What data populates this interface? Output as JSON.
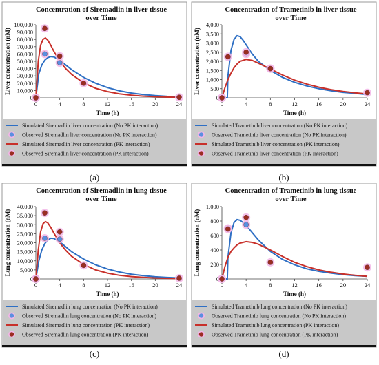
{
  "colors": {
    "simulated_no_pk": "#2e6fc4",
    "observed_no_pk_fill": "#5b8fe0",
    "simulated_pk": "#c8302a",
    "observed_pk_fill": "#9b2d22",
    "marker_halo": "#f2b6e6",
    "legend_bg": "#c8c8c8",
    "frame": "#9a9a9a"
  },
  "panel_labels": [
    "(a)",
    "(b)",
    "(c)",
    "(d)"
  ],
  "chart_data": [
    {
      "type": "line",
      "title": [
        "Concentration of Siremadlin in liver tissue",
        "over Time"
      ],
      "xlabel": "Time (h)",
      "ylabel": "Liver concentration (nM)",
      "xlim": [
        0,
        24
      ],
      "ylim": [
        0,
        100000
      ],
      "xticks": [
        0,
        4,
        8,
        12,
        16,
        20,
        24
      ],
      "yticks": [
        0,
        10000,
        20000,
        30000,
        40000,
        50000,
        60000,
        70000,
        80000,
        90000,
        100000
      ],
      "ytick_labels": [
        "0",
        "10,000",
        "20,000",
        "30,000",
        "40,000",
        "50,000",
        "60,000",
        "70,000",
        "80,000",
        "90,000",
        "100,000"
      ],
      "grid": false,
      "series": [
        {
          "name": "Simulated Siremadlin liver concentration (No PK interaction)",
          "kind": "line",
          "color": "#2e6fc4",
          "x": [
            0,
            0.5,
            1,
            1.5,
            2,
            2.5,
            3,
            3.5,
            4,
            5,
            6,
            8,
            10,
            12,
            14,
            16,
            18,
            20,
            22,
            24
          ],
          "y": [
            0,
            33000,
            45000,
            51500,
            55000,
            56500,
            56000,
            54000,
            51500,
            45000,
            38500,
            28000,
            20000,
            14000,
            9500,
            6500,
            4500,
            3000,
            2000,
            1300
          ]
        },
        {
          "name": "Observed Siremadlin liver concentration (No PK interaction)",
          "kind": "marker",
          "color": "#5b8fe0",
          "x": [
            0,
            1.5,
            4
          ],
          "y": [
            0,
            60000,
            48000
          ]
        },
        {
          "name": "Simulated Siremadlin liver concentration (PK interaction)",
          "kind": "line",
          "color": "#c8302a",
          "x": [
            0,
            0.4,
            0.8,
            1.2,
            1.6,
            2,
            2.5,
            3,
            4,
            5,
            6,
            8,
            10,
            12,
            14,
            16,
            18,
            20,
            22,
            24
          ],
          "y": [
            0,
            50000,
            72000,
            80000,
            82000,
            79000,
            72000,
            64000,
            50000,
            40000,
            32000,
            20500,
            13000,
            8500,
            5500,
            3500,
            2300,
            1500,
            1000,
            600
          ]
        },
        {
          "name": "Observed Siremadlin liver concentration (PK interaction)",
          "kind": "marker",
          "color": "#9b2d22",
          "x": [
            0,
            1.5,
            4,
            8,
            24
          ],
          "y": [
            0,
            95000,
            57000,
            20000,
            700
          ]
        }
      ]
    },
    {
      "type": "line",
      "title": [
        "Concentration of Trametinib in liver tissue",
        "over Time"
      ],
      "xlabel": "Time (h)",
      "ylabel": "Liver concentration (nM)",
      "xlim": [
        0,
        24
      ],
      "ylim": [
        0,
        4000
      ],
      "xticks": [
        0,
        4,
        8,
        12,
        16,
        20,
        24
      ],
      "yticks": [
        0,
        500,
        1000,
        1500,
        2000,
        2500,
        3000,
        3500,
        4000
      ],
      "ytick_labels": [
        "0",
        "500",
        "1,000",
        "1,500",
        "2,000",
        "2,500",
        "3,000",
        "3,500",
        "4,000"
      ],
      "grid": false,
      "series": [
        {
          "name": "Simulated Trametinib liver concentration (No PK interaction)",
          "kind": "line",
          "color": "#2e6fc4",
          "x": [
            0,
            0.9,
            1,
            1.5,
            2,
            2.5,
            3,
            3.5,
            4,
            5,
            6,
            8,
            10,
            12,
            14,
            16,
            18,
            20,
            22,
            24
          ],
          "y": [
            0,
            0,
            1200,
            2600,
            3200,
            3400,
            3350,
            3150,
            2900,
            2400,
            2000,
            1500,
            1120,
            850,
            650,
            500,
            390,
            300,
            240,
            180
          ]
        },
        {
          "name": "Observed Trametinib liver concentration (No PK interaction)",
          "kind": "marker",
          "color": "#5b8fe0",
          "x": [
            0,
            4,
            8
          ],
          "y": [
            0,
            2400,
            1600
          ]
        },
        {
          "name": "Simulated Trametinib liver concentration (PK interaction)",
          "kind": "line",
          "color": "#c8302a",
          "x": [
            0,
            0.5,
            1,
            1.5,
            2,
            2.5,
            3,
            4,
            5,
            6,
            8,
            10,
            12,
            14,
            16,
            18,
            20,
            22,
            24
          ],
          "y": [
            0,
            550,
            1000,
            1350,
            1650,
            1850,
            2000,
            2100,
            2050,
            1900,
            1580,
            1250,
            970,
            750,
            580,
            450,
            350,
            270,
            210
          ]
        },
        {
          "name": "Observed Trametinib liver concentration (PK interaction)",
          "kind": "marker",
          "color": "#9b2d22",
          "x": [
            0,
            1,
            4,
            8,
            24
          ],
          "y": [
            0,
            2250,
            2500,
            1600,
            280
          ]
        }
      ]
    },
    {
      "type": "line",
      "title": [
        "Concentration of Siremadlin in lung tissue",
        "over Time"
      ],
      "xlabel": "Time (h)",
      "ylabel": "Lung concentration (nM)",
      "xlim": [
        0,
        24
      ],
      "ylim": [
        0,
        40000
      ],
      "xticks": [
        0,
        4,
        8,
        12,
        16,
        20,
        24
      ],
      "yticks": [
        0,
        5000,
        10000,
        15000,
        20000,
        25000,
        30000,
        35000,
        40000
      ],
      "ytick_labels": [
        "0",
        "5,000",
        "10,000",
        "15,000",
        "20,000",
        "25,000",
        "30,000",
        "35,000",
        "40,000"
      ],
      "grid": false,
      "series": [
        {
          "name": "Simulated Siremadlin lung concentration (No PK interaction)",
          "kind": "line",
          "color": "#2e6fc4",
          "x": [
            0,
            0.5,
            1,
            1.5,
            2,
            2.5,
            3,
            3.5,
            4,
            5,
            6,
            8,
            10,
            12,
            14,
            16,
            18,
            20,
            22,
            24
          ],
          "y": [
            0,
            10000,
            16000,
            19500,
            21500,
            22500,
            22400,
            21500,
            20500,
            17800,
            15000,
            11000,
            7800,
            5500,
            3800,
            2600,
            1800,
            1200,
            800,
            550
          ]
        },
        {
          "name": "Observed Siremadlin lung concentration (No PK interaction)",
          "kind": "marker",
          "color": "#5b8fe0",
          "x": [
            0,
            1.5,
            4
          ],
          "y": [
            0,
            22500,
            22000
          ]
        },
        {
          "name": "Simulated Siremadlin lung concentration (PK interaction)",
          "kind": "line",
          "color": "#c8302a",
          "x": [
            0,
            0.4,
            0.8,
            1.2,
            1.6,
            2,
            2.5,
            3,
            4,
            5,
            6,
            8,
            10,
            12,
            14,
            16,
            18,
            20,
            22,
            24
          ],
          "y": [
            0,
            16000,
            26000,
            30500,
            31700,
            31000,
            28500,
            25500,
            20000,
            15800,
            12500,
            8000,
            5000,
            3200,
            2000,
            1300,
            850,
            550,
            350,
            230
          ]
        },
        {
          "name": "Observed Siremadlin lung concentration (PK interaction)",
          "kind": "marker",
          "color": "#9b2d22",
          "x": [
            0,
            1.5,
            4,
            8,
            24
          ],
          "y": [
            0,
            36500,
            26000,
            7500,
            400
          ]
        }
      ]
    },
    {
      "type": "line",
      "title": [
        "Concentration of Trametinib in lung tissue",
        "over Time"
      ],
      "xlabel": "Time (h)",
      "ylabel": "Lung concentration (nM)",
      "xlim": [
        0,
        24
      ],
      "ylim": [
        0,
        1000
      ],
      "xticks": [
        0,
        4,
        8,
        12,
        16,
        20,
        24
      ],
      "yticks": [
        0,
        200,
        400,
        600,
        800,
        1000
      ],
      "ytick_labels": [
        "0",
        "200",
        "400",
        "600",
        "800",
        "1,000"
      ],
      "grid": false,
      "series": [
        {
          "name": "Simulated Trametinib lung concentration (No PK interaction)",
          "kind": "line",
          "color": "#2e6fc4",
          "x": [
            0,
            0.9,
            1,
            1.5,
            2,
            2.5,
            3,
            3.5,
            4,
            5,
            6,
            8,
            10,
            12,
            14,
            16,
            18,
            20,
            22,
            24
          ],
          "y": [
            0,
            0,
            300,
            640,
            780,
            820,
            810,
            780,
            740,
            640,
            540,
            380,
            270,
            195,
            140,
            105,
            80,
            60,
            45,
            35
          ]
        },
        {
          "name": "Observed Trametinib lung concentration (No PK interaction)",
          "kind": "marker",
          "color": "#5b8fe0",
          "x": [
            0,
            1,
            4
          ],
          "y": [
            0,
            700,
            750
          ]
        },
        {
          "name": "Simulated Trametinib lung concentration (PK interaction)",
          "kind": "line",
          "color": "#c8302a",
          "x": [
            0,
            0.5,
            1,
            1.5,
            2,
            2.5,
            3,
            4,
            5,
            6,
            8,
            10,
            12,
            14,
            16,
            18,
            20,
            22,
            24
          ],
          "y": [
            0,
            170,
            300,
            380,
            430,
            470,
            495,
            515,
            505,
            480,
            400,
            310,
            230,
            170,
            125,
            92,
            68,
            50,
            35
          ]
        },
        {
          "name": "Observed Trametinib lung concentration (PK interaction)",
          "kind": "marker",
          "color": "#9b2d22",
          "x": [
            0,
            1,
            4,
            8,
            24
          ],
          "y": [
            0,
            690,
            850,
            230,
            160
          ]
        }
      ]
    }
  ]
}
